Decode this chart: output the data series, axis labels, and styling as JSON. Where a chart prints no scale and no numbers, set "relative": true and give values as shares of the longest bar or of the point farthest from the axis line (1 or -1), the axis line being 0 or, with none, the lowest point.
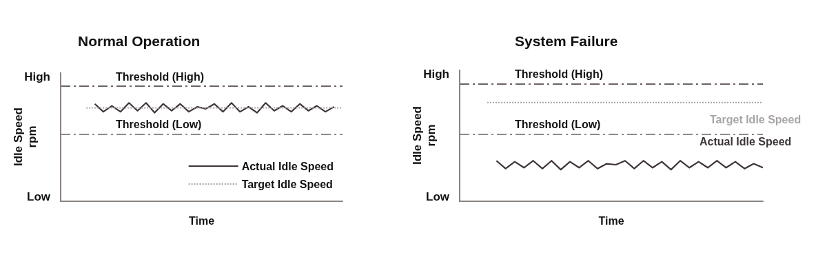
{
  "chart_data": [
    {
      "type": "line",
      "title": "Normal Operation",
      "xlabel": "Time",
      "ylabel": "Idle Speed\nrpm",
      "relative": true,
      "annotations": [
        "High",
        "Low"
      ],
      "categories": [
        null,
        null,
        null,
        null,
        null,
        null,
        null,
        null,
        null,
        null,
        null,
        null,
        null,
        null,
        null,
        null,
        null,
        null,
        null,
        null,
        null,
        null,
        null,
        null,
        null,
        null,
        null,
        null,
        null,
        null,
        null,
        null,
        null,
        null
      ],
      "grid": false,
      "legend": "bottom right",
      "marker": "none",
      "series": [
        {
          "name": "Actual Idle Speed",
          "color": "#3d3535",
          "line_style": "solid",
          "values": [
            null,
            null,
            null,
            null,
            0.99,
            0.91,
            0.97,
            0.91,
            1,
            0.92,
            1,
            0.9,
            0.99,
            0.92,
            0.99,
            0.91,
            0.96,
            0.94,
            0.99,
            0.91,
            1,
            0.91,
            0.96,
            0.9,
            1,
            0.92,
            0.97,
            0.91,
            0.99,
            0.92,
            0.97,
            0.91,
            0.96,
            null
          ]
        },
        {
          "name": "Target Idle Speed",
          "color": "#a9a5a3",
          "line_style": "dotted",
          "values": [
            null,
            null,
            null,
            0.95,
            0.95,
            0.95,
            0.95,
            0.95,
            0.95,
            0.95,
            0.95,
            0.95,
            0.95,
            0.95,
            0.95,
            0.95,
            0.95,
            0.95,
            0.95,
            0.95,
            0.95,
            0.95,
            0.95,
            0.95,
            0.95,
            0.95,
            0.95,
            0.95,
            0.95,
            0.95,
            0.95,
            0.95,
            0.95,
            0.95
          ]
        }
      ],
      "ref_lines": [
        {
          "axis": "y",
          "value": 1.17,
          "label": "Threshold (High)",
          "color": "#6b6360",
          "line_style": "dashed"
        },
        {
          "axis": "y",
          "value": 0.68,
          "label": "Threshold (Low)",
          "color": "#8e8a88",
          "line_style": "dashed"
        }
      ]
    },
    {
      "type": "line",
      "title": "System Failure",
      "xlabel": "Time",
      "ylabel": "Idle Speed\nrpm",
      "relative": true,
      "annotations": [
        "High",
        "Low"
      ],
      "categories": [
        null,
        null,
        null,
        null,
        null,
        null,
        null,
        null,
        null,
        null,
        null,
        null,
        null,
        null,
        null,
        null,
        null,
        null,
        null,
        null,
        null,
        null,
        null,
        null,
        null,
        null,
        null,
        null,
        null,
        null,
        null,
        null,
        null,
        null
      ],
      "grid": false,
      "legend": false,
      "marker": "none",
      "series": [
        {
          "name": "Actual Idle Speed",
          "color": "#3d3535",
          "line_style": "solid",
          "values": [
            null,
            null,
            null,
            null,
            0.41,
            0.33,
            0.4,
            0.34,
            0.41,
            0.33,
            0.41,
            0.32,
            0.4,
            0.34,
            0.41,
            0.33,
            0.38,
            0.37,
            0.41,
            0.33,
            0.41,
            0.34,
            0.4,
            0.32,
            0.41,
            0.34,
            0.4,
            0.34,
            0.41,
            0.34,
            0.4,
            0.33,
            0.38,
            0.34
          ]
        },
        {
          "name": "Target Idle Speed",
          "color": "#a9a5a3",
          "line_style": "dotted",
          "values": [
            null,
            null,
            null,
            1,
            1,
            1,
            1,
            1,
            1,
            1,
            1,
            1,
            1,
            1,
            1,
            1,
            1,
            1,
            1,
            1,
            1,
            1,
            1,
            1,
            1,
            1,
            1,
            1,
            1,
            1,
            1,
            1,
            1,
            1
          ]
        }
      ],
      "ref_lines": [
        {
          "axis": "y",
          "value": 1.19,
          "label": "Threshold (High)",
          "color": "#6b6360",
          "line_style": "dashed"
        },
        {
          "axis": "y",
          "value": 0.68,
          "label": "Threshold (Low)",
          "color": "#8e8a88",
          "line_style": "dashed"
        }
      ]
    }
  ]
}
